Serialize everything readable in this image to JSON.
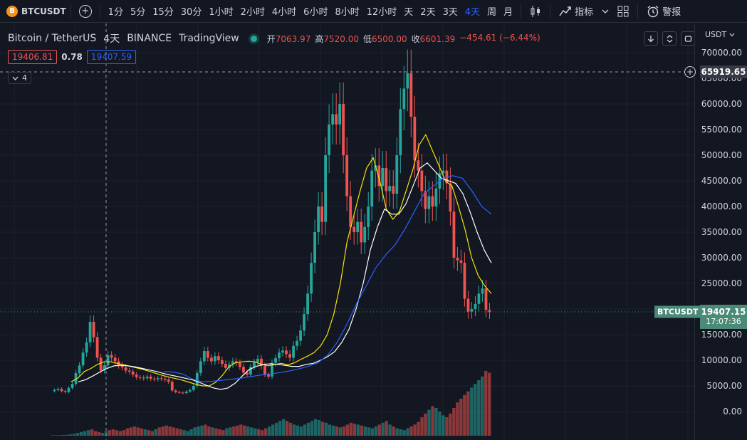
{
  "toolbar": {
    "symbol": "BTCUSDT",
    "coin_glyph": "B",
    "intervals": [
      "1分",
      "5分",
      "15分",
      "30分",
      "1小时",
      "2小时",
      "4小时",
      "6小时",
      "8小时",
      "12小时",
      "天",
      "2天",
      "3天",
      "4天",
      "周",
      "月"
    ],
    "active_interval": "4天",
    "indicators_label": "指标",
    "alerts_label": "警报"
  },
  "legend": {
    "pair": "Bitcoin / TetherUS",
    "interval": "4天",
    "exchange": "BINANCE",
    "source": "TradingView",
    "open_label": "开",
    "open": "7063.97",
    "high_label": "高",
    "high": "7520.00",
    "low_label": "低",
    "low": "6500.00",
    "close_label": "收",
    "close": "6601.39",
    "change": "−454.61 (−6.44%)"
  },
  "tags": {
    "sell": "19406.81",
    "spread": "0.78",
    "buy": "19407.59"
  },
  "indicators_collapsed_count": "4",
  "price_axis": {
    "currency": "USDT",
    "ticks": [
      "70000.00",
      "65000.00",
      "60000.00",
      "55000.00",
      "50000.00",
      "45000.00",
      "40000.00",
      "35000.00",
      "30000.00",
      "25000.00",
      "20000.00",
      "15000.00",
      "10000.00",
      "5000.00",
      "0.00"
    ],
    "crosshair_price": "65919.65",
    "last_price": "19407.15",
    "countdown": "17:07:36",
    "last_symbol": "BTCUSDT"
  },
  "colors": {
    "background": "#131722",
    "up": "#26a69a",
    "down": "#ef5350",
    "ma_yellow": "#f5e500",
    "ma_white": "#ffffff",
    "ma_blue": "#2962ff",
    "active": "#2962ff"
  },
  "chart_data": {
    "type": "candlestick",
    "title": "Bitcoin / TetherUS",
    "ylim": [
      0,
      70000
    ],
    "close_series": [
      4200,
      4400,
      4000,
      3800,
      4600,
      5400,
      7500,
      9000,
      11500,
      13500,
      17500,
      14500,
      10500,
      8000,
      9000,
      11000,
      10500,
      9800,
      9000,
      8600,
      8000,
      7800,
      7200,
      6700,
      6600,
      6500,
      6800,
      6400,
      6300,
      6500,
      6400,
      6200,
      5800,
      4100,
      3800,
      3700,
      3600,
      3900,
      4200,
      5000,
      7500,
      9800,
      11800,
      10500,
      9800,
      10800,
      10000,
      9300,
      8500,
      9200,
      9800,
      9500,
      8700,
      7600,
      7200,
      8700,
      9600,
      10300,
      8900,
      7200,
      6800,
      9500,
      10400,
      11500,
      11900,
      11200,
      10500,
      12800,
      13800,
      15800,
      19000,
      23000,
      29000,
      35000,
      40000,
      37000,
      50000,
      56000,
      58000,
      56000,
      60000,
      50000,
      42000,
      36000,
      35000,
      37000,
      33000,
      36000,
      40000,
      47000,
      48000,
      44000,
      47500,
      43000,
      44000,
      42500,
      50000,
      59000,
      63000,
      66000,
      57500,
      49000,
      47000,
      43000,
      39500,
      42000,
      40000,
      43500,
      46500,
      47000,
      44500,
      39000,
      30000,
      29500,
      29000,
      22000,
      19500,
      20000,
      21000,
      23000,
      24000,
      19800,
      19407
    ],
    "ma_yellow": [
      5800,
      6500,
      7800,
      8400,
      9200,
      9700,
      9700,
      9400,
      9100,
      8800,
      8500,
      8200,
      7800,
      7400,
      7000,
      6700,
      6400,
      6100,
      5700,
      5300,
      5000,
      5000,
      5700,
      7000,
      8700,
      9500,
      9700,
      9800,
      9700,
      9200,
      8900,
      9200,
      9400,
      9100,
      9500,
      10200,
      10800,
      11500,
      12800,
      15000,
      19000,
      25000,
      33000,
      38000,
      43000,
      47500,
      49500,
      45000,
      39500,
      37500,
      39000,
      43000,
      47000,
      52000,
      54000,
      51000,
      48000,
      45000,
      44000,
      40000,
      35500,
      30000,
      26500,
      24500,
      23000
    ],
    "ma_white": [
      5800,
      6200,
      6900,
      7700,
      8400,
      8900,
      9000,
      8900,
      8700,
      8400,
      8100,
      7800,
      7400,
      7100,
      6800,
      6500,
      6200,
      5700,
      5100,
      4600,
      4300,
      4600,
      5500,
      6900,
      8200,
      8800,
      9200,
      9300,
      9200,
      9000,
      8800,
      8800,
      9200,
      9400,
      10000,
      10700,
      11700,
      13500,
      16000,
      20000,
      25000,
      31500,
      36000,
      39500,
      38500,
      38500,
      40500,
      44000,
      47500,
      48500,
      47000,
      45500,
      45000,
      44500,
      42500,
      39000,
      35000,
      31500,
      29000
    ],
    "ma_blue": [
      7800,
      7700,
      7300,
      6300,
      5800,
      5900,
      6100,
      6300,
      6500,
      6800,
      7100,
      7300,
      7600,
      7900,
      8300,
      8800,
      9500,
      11000,
      13500,
      17000,
      21000,
      24500,
      28000,
      30500,
      32500,
      35500,
      39000,
      42500,
      44000,
      45500,
      46000,
      45500,
      43000,
      40000,
      38500
    ],
    "volume": [
      0.5,
      0.5,
      0.6,
      0.8,
      1,
      1.5,
      2,
      3,
      4,
      5,
      6,
      7,
      5,
      4,
      3,
      5,
      6,
      7,
      6,
      5,
      6,
      8,
      9,
      10,
      9,
      8,
      7,
      6,
      5,
      7,
      9,
      10,
      11,
      10,
      9,
      8,
      7,
      6,
      5,
      7,
      9,
      10,
      11,
      12,
      10,
      9,
      8,
      7,
      6,
      8,
      9,
      10,
      11,
      12,
      11,
      10,
      9,
      8,
      7,
      6,
      8,
      10,
      12,
      14,
      16,
      18,
      16,
      14,
      12,
      11,
      10,
      12,
      14,
      16,
      18,
      17,
      15,
      14,
      12,
      11,
      10,
      9,
      10,
      12,
      14,
      13,
      12,
      11,
      10,
      9,
      8,
      10,
      12,
      14,
      16,
      12,
      10,
      8,
      7,
      6,
      8,
      10,
      12,
      15,
      20,
      24,
      28,
      32,
      30,
      26,
      22,
      20,
      24,
      30,
      36,
      40,
      44,
      48,
      52,
      56,
      60,
      64,
      70,
      68
    ]
  }
}
